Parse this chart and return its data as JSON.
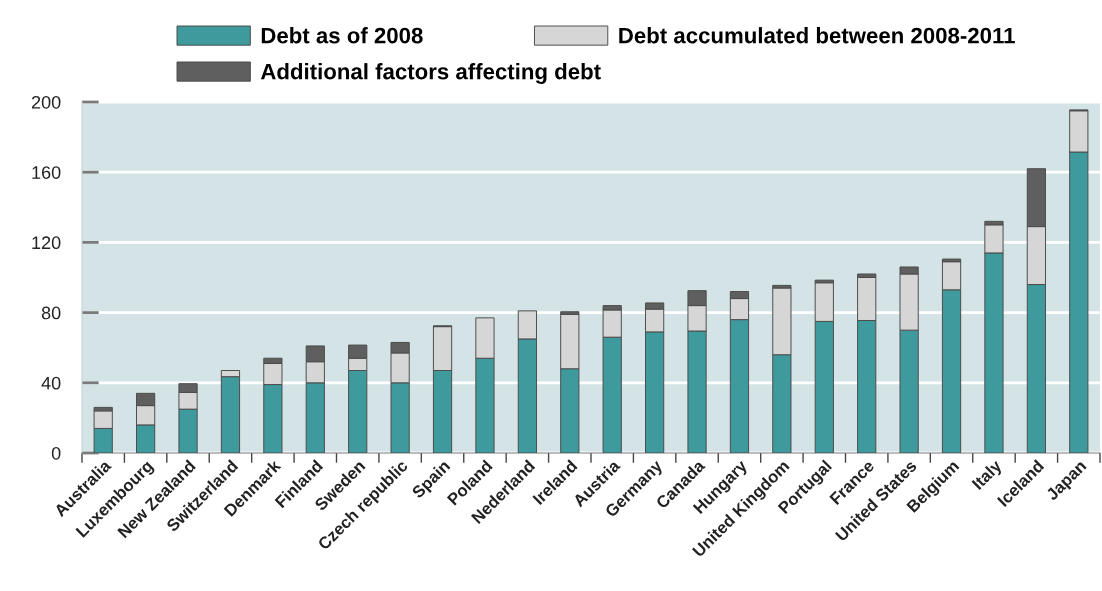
{
  "chart_data": {
    "type": "bar",
    "stacked": true,
    "categories": [
      "Australia",
      "Luxembourg",
      "New Zealand",
      "Switzerland",
      "Denmark",
      "Finland",
      "Sweden",
      "Czech republic",
      "Spain",
      "Poland",
      "Nederland",
      "Ireland",
      "Austria",
      "Germany",
      "Canada",
      "Hungary",
      "United Kingdom",
      "Portugal",
      "France",
      "United States",
      "Belgium",
      "Italy",
      "Iceland",
      "Japan"
    ],
    "series": [
      {
        "name": "Debt as of 2008",
        "color": "#3f9a9d",
        "values": [
          14,
          16,
          25,
          43.5,
          39,
          40,
          47,
          40,
          47,
          54,
          65,
          48,
          66,
          69,
          69.5,
          76,
          56,
          75,
          75.5,
          70,
          93,
          114,
          96,
          171.5
        ]
      },
      {
        "name": "Debt accumulated between 2008-2011",
        "color": "#d6d6d6",
        "values": [
          10,
          11,
          9.5,
          3.5,
          12,
          12,
          7,
          17,
          25,
          23,
          16,
          31,
          15.5,
          13,
          14.5,
          12,
          38,
          22,
          24.5,
          32,
          16,
          16,
          33,
          23.5
        ]
      },
      {
        "name": "Additional factors affecting debt",
        "color": "#5f5f5f",
        "values": [
          2,
          7,
          5,
          null,
          3,
          9,
          7.5,
          6,
          0.5,
          null,
          null,
          1.5,
          2.5,
          3.5,
          8.5,
          4,
          1.5,
          1.5,
          2,
          4,
          1.5,
          2,
          33,
          0.5
        ]
      }
    ],
    "ylim": [
      0,
      200
    ],
    "yticks": [
      0,
      40,
      80,
      120,
      160,
      200
    ],
    "grid": "y",
    "legend": "top"
  }
}
